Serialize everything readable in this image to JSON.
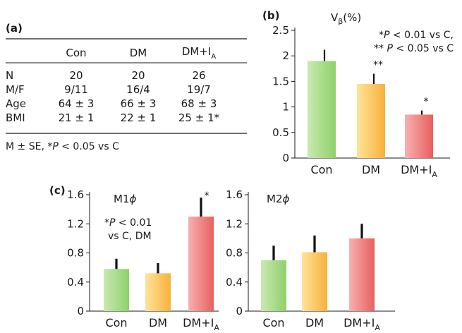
{
  "panel_a": {
    "label": "(a)",
    "columns": [
      "",
      "Con",
      "DM",
      "DM+I",
      "A"
    ],
    "rows": [
      {
        "label": "N",
        "values": [
          "20",
          "20",
          "26"
        ]
      },
      {
        "label": "M/F",
        "values": [
          "9/11",
          "16/4",
          "19/7"
        ]
      },
      {
        "label": "Age",
        "values": [
          "64 ± 3",
          "66 ± 3",
          "68 ± 3"
        ]
      },
      {
        "label": "BMI",
        "values": [
          "21 ± 1",
          "22 ± 1",
          "25 ± 1*"
        ]
      }
    ],
    "footnote_prefix": "M ± SE, *",
    "footnote_p": "P",
    "footnote_rest": " < 0.05 vs C"
  },
  "chart_data": [
    {
      "type": "bar",
      "panel": "(b)",
      "title_main": "V",
      "title_sub": "β",
      "title_tail": "(%)",
      "categories": [
        "Con",
        "DM",
        "DM+I"
      ],
      "category_subscript": [
        "",
        "",
        "A"
      ],
      "values": [
        1.9,
        1.45,
        0.85
      ],
      "errors": [
        0.22,
        0.2,
        0.08
      ],
      "markers": [
        "",
        "**",
        "*"
      ],
      "ylim": [
        0,
        2.5
      ],
      "yticks": [
        "0",
        "0.5",
        "1",
        "1.5",
        "2",
        "2.5"
      ],
      "yticks_values": [
        0,
        0.5,
        1,
        1.5,
        2,
        2.5
      ],
      "note_lines": [
        {
          "prefix": "*",
          "p": "P",
          "rest": " < 0.01 vs C,"
        },
        {
          "prefix": "** ",
          "p": "P",
          "rest": " < 0.05 vs C"
        }
      ]
    },
    {
      "type": "bar",
      "panel": "(c)",
      "title_main": "M1",
      "title_phi": "ϕ",
      "categories": [
        "Con",
        "DM",
        "DM+I"
      ],
      "category_subscript": [
        "",
        "",
        "A"
      ],
      "values": [
        0.58,
        0.52,
        1.3
      ],
      "errors": [
        0.14,
        0.14,
        0.26
      ],
      "markers": [
        "",
        "",
        "*"
      ],
      "ylim": [
        0,
        1.6
      ],
      "yticks": [
        "0",
        "0.4",
        "0.8",
        "1.2",
        "1.6"
      ],
      "yticks_values": [
        0,
        0.4,
        0.8,
        1.2,
        1.6
      ],
      "note_lines": [
        {
          "prefix": "*",
          "p": "P",
          "rest": " < 0.01"
        },
        {
          "prefix": "",
          "p": "",
          "rest": "vs C, DM"
        }
      ]
    },
    {
      "type": "bar",
      "panel": "",
      "title_main": "M2",
      "title_phi": "ϕ",
      "categories": [
        "Con",
        "DM",
        "DM+I"
      ],
      "category_subscript": [
        "",
        "",
        "A"
      ],
      "values": [
        0.7,
        0.81,
        1.0
      ],
      "errors": [
        0.2,
        0.23,
        0.2
      ],
      "markers": [
        "",
        "",
        ""
      ],
      "ylim": [
        0,
        1.6
      ],
      "yticks": [
        "0",
        "0.4",
        "0.8",
        "1.2",
        "1.6"
      ],
      "yticks_values": [
        0,
        0.4,
        0.8,
        1.2,
        1.6
      ],
      "note_lines": []
    }
  ],
  "colors": {
    "con": [
      "#c9e9b0",
      "#8fd06a"
    ],
    "dm": [
      "#ffe39a",
      "#f7b13a"
    ],
    "dmia": [
      "#f8b0b0",
      "#e85f5f"
    ]
  }
}
